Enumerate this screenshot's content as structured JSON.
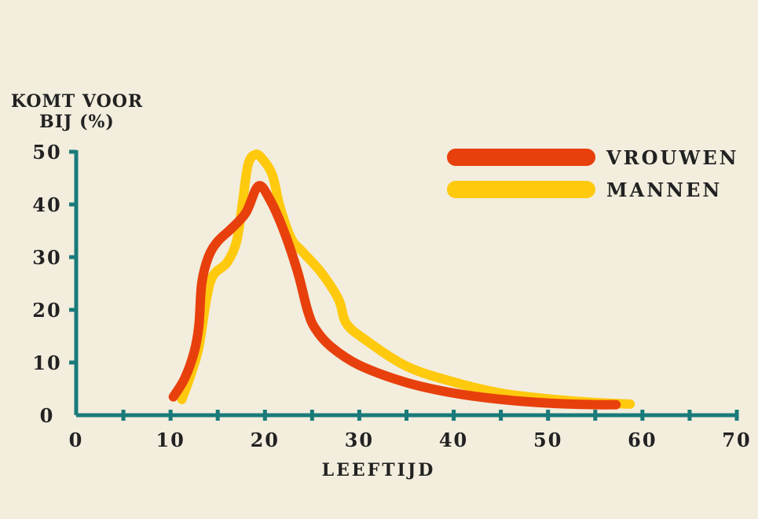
{
  "chart_data": {
    "type": "line",
    "title": "",
    "ylabel_lines": [
      "KOMT VOOR",
      "BIJ (%)"
    ],
    "xlabel": "LEEFTIJD",
    "xlim": [
      0,
      70
    ],
    "ylim": [
      0,
      50
    ],
    "xticks": [
      0,
      10,
      20,
      30,
      40,
      50,
      60,
      70
    ],
    "yticks": [
      0,
      10,
      20,
      30,
      40,
      50
    ],
    "x_minor_step": 5,
    "grid": false,
    "legend_position": "top-right",
    "axis_color": "#1a7a7a",
    "series": [
      {
        "name": "VROUWEN",
        "color": "#e8400c",
        "x": [
          10.3,
          11.5,
          12.5,
          13.0,
          13.3,
          14.0,
          15.0,
          16.5,
          18.0,
          19.3,
          20.5,
          22.0,
          23.5,
          24.5,
          25.3,
          27.0,
          30.0,
          35.0,
          40.0,
          45.0,
          50.0,
          55.0,
          57.2
        ],
        "y": [
          3.5,
          7.0,
          12.0,
          17.0,
          25.0,
          30.0,
          33.0,
          35.5,
          38.5,
          43.5,
          41.0,
          35.0,
          27.0,
          20.0,
          16.5,
          13.0,
          9.5,
          6.2,
          4.2,
          3.0,
          2.3,
          2.0,
          2.0
        ]
      },
      {
        "name": "MANNEN",
        "color": "#ffc90e",
        "x": [
          11.2,
          12.2,
          13.0,
          13.8,
          14.5,
          16.0,
          17.0,
          17.6,
          18.2,
          19.0,
          19.8,
          20.8,
          21.6,
          22.8,
          24.0,
          26.0,
          27.8,
          28.6,
          30.5,
          35.0,
          40.0,
          45.0,
          50.0,
          55.0,
          58.7
        ],
        "y": [
          3.0,
          8.0,
          13.0,
          22.0,
          26.5,
          29.0,
          33.0,
          40.0,
          47.5,
          49.5,
          48.5,
          45.5,
          39.5,
          33.5,
          31.0,
          27.0,
          22.0,
          17.5,
          14.5,
          9.3,
          6.3,
          4.2,
          3.1,
          2.4,
          2.1
        ]
      }
    ]
  }
}
